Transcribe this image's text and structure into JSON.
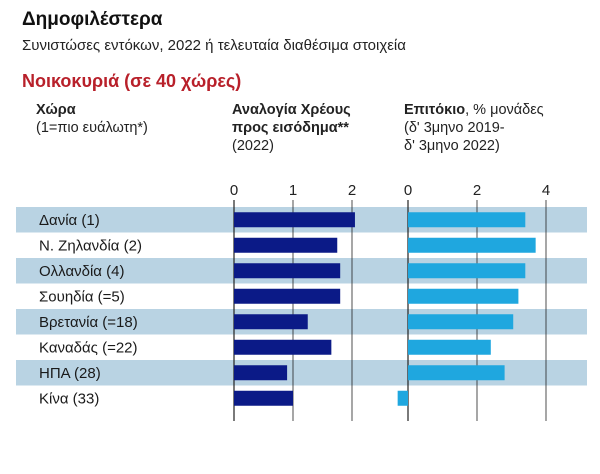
{
  "header": {
    "title": "Δημοφιλέστερα",
    "subtitle": "Συνιστώσες εντόκων, 2022 ή τελευταία διαθέσιμα στοιχεία",
    "section": "Νοικοκυριά (σε 40 χώρες)"
  },
  "columns": {
    "country": {
      "title": "Χώρα",
      "note": "(1=πιο ευάλωτη*)"
    },
    "debt": {
      "title_line1": "Αναλογία Χρέους",
      "title_line2": "προς εισόδημα**",
      "note": "(2022)"
    },
    "rate": {
      "title_bold": "Επιτόκιο",
      "title_rest": ", % μονάδες",
      "note_line1": "(δ' 3μηνο 2019-",
      "note_line2": "δ' 3μηνο 2022)"
    }
  },
  "colors": {
    "debt_bar": "#0b1a87",
    "rate_bar": "#1fa7df",
    "stripe": "#b9d3e3",
    "axis": "#222222",
    "section": "#b8202a"
  },
  "chart_data": [
    {
      "type": "bar",
      "orientation": "horizontal",
      "categories": [
        "Δανία (1)",
        "Ν. Ζηλανδία (2)",
        "Ολλανδία (4)",
        "Σουηδία (=5)",
        "Βρετανία (=18)",
        "Καναδάς (=22)",
        "ΗΠΑ (28)",
        "Κίνα (33)"
      ],
      "values": [
        2.05,
        1.75,
        1.8,
        1.8,
        1.25,
        1.65,
        0.9,
        1.0
      ],
      "xlim": [
        0,
        2.1
      ],
      "ticks": [
        0,
        1,
        2
      ],
      "grid": true
    },
    {
      "type": "bar",
      "orientation": "horizontal",
      "categories": [
        "Δανία (1)",
        "Ν. Ζηλανδία (2)",
        "Ολλανδία (4)",
        "Σουηδία (=5)",
        "Βρετανία (=18)",
        "Καναδάς (=22)",
        "ΗΠΑ (28)",
        "Κίνα (33)"
      ],
      "values": [
        3.4,
        3.7,
        3.4,
        3.2,
        3.05,
        2.4,
        2.8,
        -0.3
      ],
      "xlim": [
        -0.3,
        4.5
      ],
      "ticks": [
        0,
        2,
        4
      ],
      "grid": true
    }
  ]
}
